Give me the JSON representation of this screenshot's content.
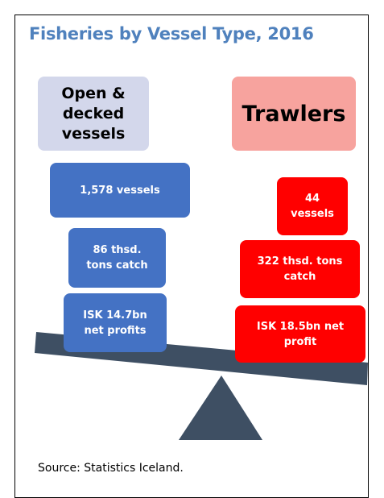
{
  "header": {
    "title": "Fisheries by Vessel Type, 2016"
  },
  "groups": [
    {
      "heading": [
        "Open &",
        "decked",
        "vessels"
      ],
      "boxes": [
        [
          "1,578 vessels"
        ],
        [
          "86 thsd.",
          "tons catch"
        ],
        [
          "ISK 14.7bn",
          "net profits"
        ]
      ]
    },
    {
      "heading": [
        "Trawlers"
      ],
      "boxes": [
        [
          "44",
          "vessels"
        ],
        [
          "322 thsd. tons",
          "catch"
        ],
        [
          "ISK 18.5bn net",
          "profit"
        ]
      ]
    }
  ],
  "footer": {
    "source": "Source: Statistics Iceland."
  }
}
